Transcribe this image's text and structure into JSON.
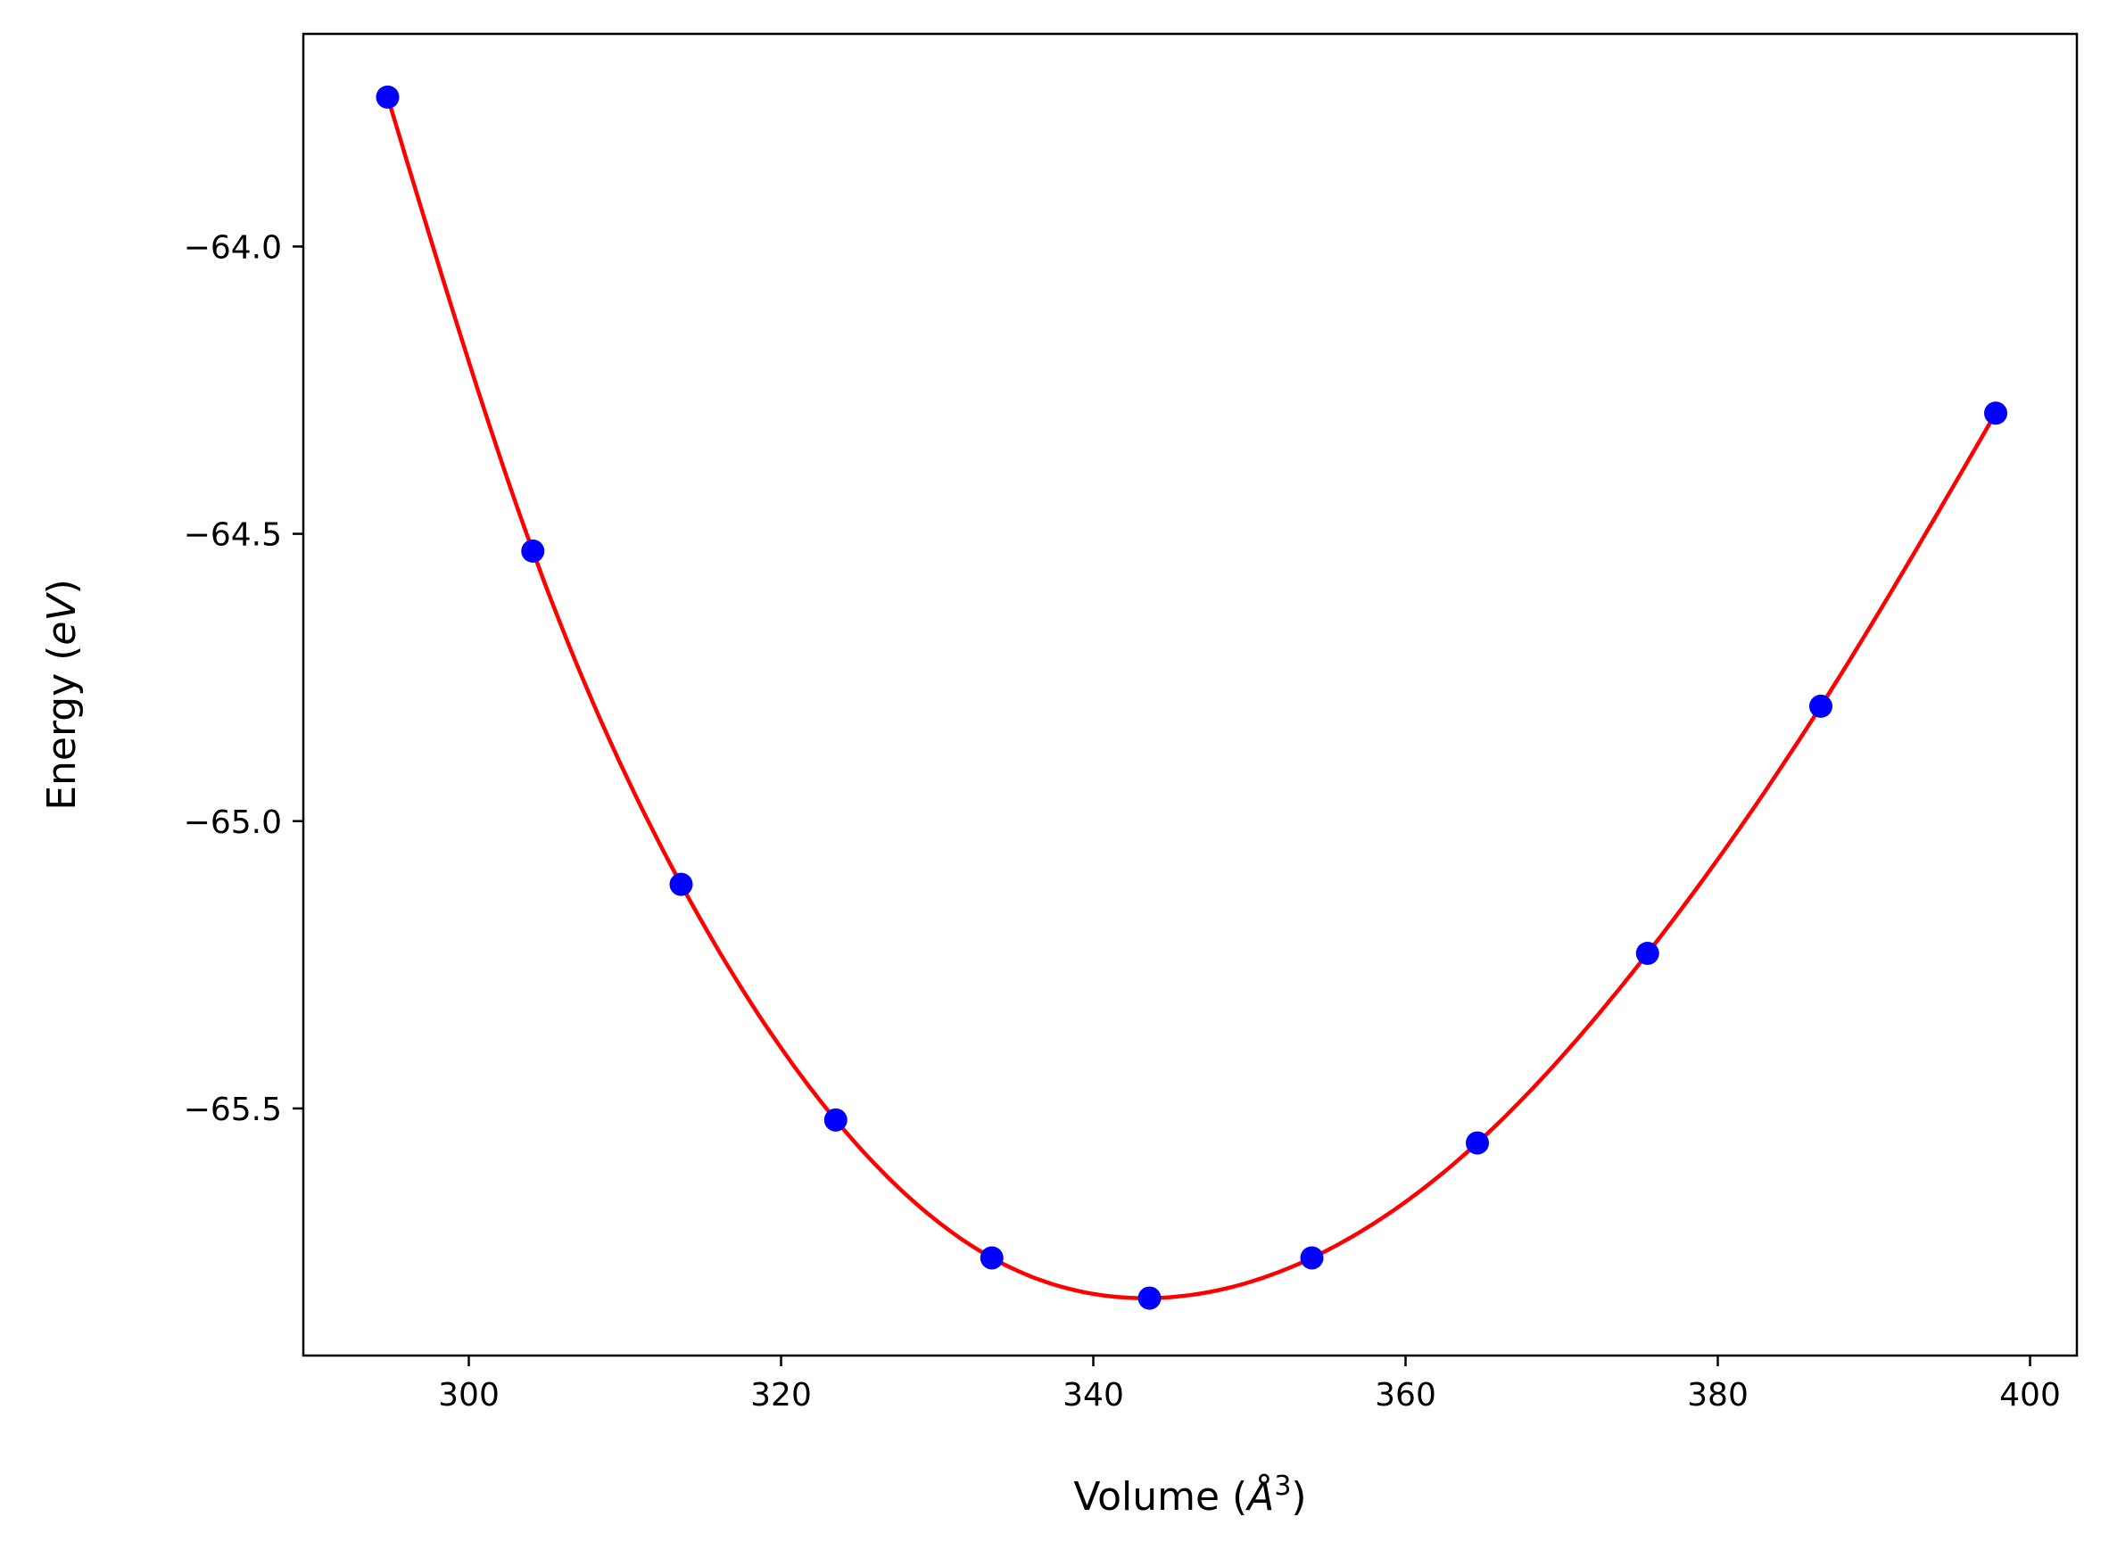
{
  "chart_data": {
    "type": "scatter",
    "xlabel": "Volume (Å³)",
    "ylabel": "Energy (eV)",
    "xlim": [
      289.4,
      403.0
    ],
    "ylim": [
      -65.93,
      -63.63
    ],
    "xticks": [
      300,
      320,
      340,
      360,
      380,
      400
    ],
    "yticks": [
      -64.0,
      -64.5,
      -65.0,
      -65.5
    ],
    "grid": false,
    "series": [
      {
        "kind": "points",
        "color": "#0000ff",
        "x": [
          294.8,
          304.1,
          313.6,
          323.5,
          333.5,
          343.6,
          354.0,
          364.6,
          375.5,
          386.6,
          397.8
        ],
        "y": [
          -63.74,
          -64.53,
          -65.11,
          -65.52,
          -65.76,
          -65.83,
          -65.76,
          -65.56,
          -65.23,
          -64.8,
          -64.29
        ]
      },
      {
        "kind": "fit-line",
        "color": "#ff0000",
        "x": [
          294.8,
          304.1,
          313.6,
          323.5,
          333.5,
          343.6,
          354.0,
          364.6,
          375.5,
          386.6,
          397.8
        ],
        "y": [
          -63.74,
          -64.53,
          -65.11,
          -65.52,
          -65.76,
          -65.83,
          -65.76,
          -65.56,
          -65.23,
          -64.8,
          -64.29
        ]
      }
    ]
  }
}
